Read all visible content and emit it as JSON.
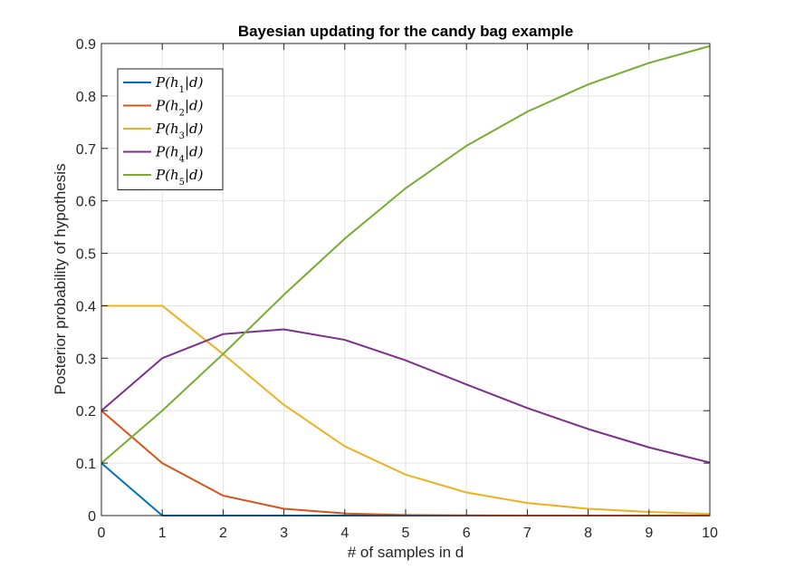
{
  "chart_data": {
    "type": "line",
    "title": "Bayesian updating for the candy bag example",
    "xlabel": "# of samples in d",
    "ylabel": "Posterior probability of hypothesis",
    "xlim": [
      0,
      10
    ],
    "ylim": [
      0,
      0.9
    ],
    "xticks": [
      0,
      1,
      2,
      3,
      4,
      5,
      6,
      7,
      8,
      9,
      10
    ],
    "yticks": [
      0,
      0.1,
      0.2,
      0.3,
      0.4,
      0.5,
      0.6,
      0.7,
      0.8,
      0.9
    ],
    "xtick_labels": [
      "0",
      "1",
      "2",
      "3",
      "4",
      "5",
      "6",
      "7",
      "8",
      "9",
      "10"
    ],
    "ytick_labels": [
      "0",
      "0.1",
      "0.2",
      "0.3",
      "0.4",
      "0.5",
      "0.6",
      "0.7",
      "0.8",
      "0.9"
    ],
    "grid": true,
    "legend_position": "top-left",
    "x": [
      0,
      1,
      2,
      3,
      4,
      5,
      6,
      7,
      8,
      9,
      10
    ],
    "series": [
      {
        "name": "P(h1|d)",
        "sub": "1",
        "color": "#0072BD",
        "values": [
          0.1,
          0,
          0,
          0,
          0,
          0,
          0,
          0,
          0,
          0,
          0
        ]
      },
      {
        "name": "P(h2|d)",
        "sub": "2",
        "color": "#D95319",
        "values": [
          0.2,
          0.1,
          0.038,
          0.013,
          0.004,
          0.001,
          0.0004,
          0.0001,
          0,
          0,
          0
        ]
      },
      {
        "name": "P(h3|d)",
        "sub": "3",
        "color": "#EDB120",
        "values": [
          0.4,
          0.4,
          0.308,
          0.211,
          0.132,
          0.078,
          0.044,
          0.024,
          0.013,
          0.007,
          0.003
        ]
      },
      {
        "name": "P(h4|d)",
        "sub": "4",
        "color": "#7E2F8E",
        "values": [
          0.2,
          0.3,
          0.346,
          0.355,
          0.335,
          0.296,
          0.25,
          0.205,
          0.165,
          0.13,
          0.101
        ]
      },
      {
        "name": "P(h5|d)",
        "sub": "5",
        "color": "#77AC30",
        "values": [
          0.1,
          0.2,
          0.308,
          0.421,
          0.528,
          0.624,
          0.705,
          0.77,
          0.822,
          0.863,
          0.895
        ]
      }
    ]
  }
}
